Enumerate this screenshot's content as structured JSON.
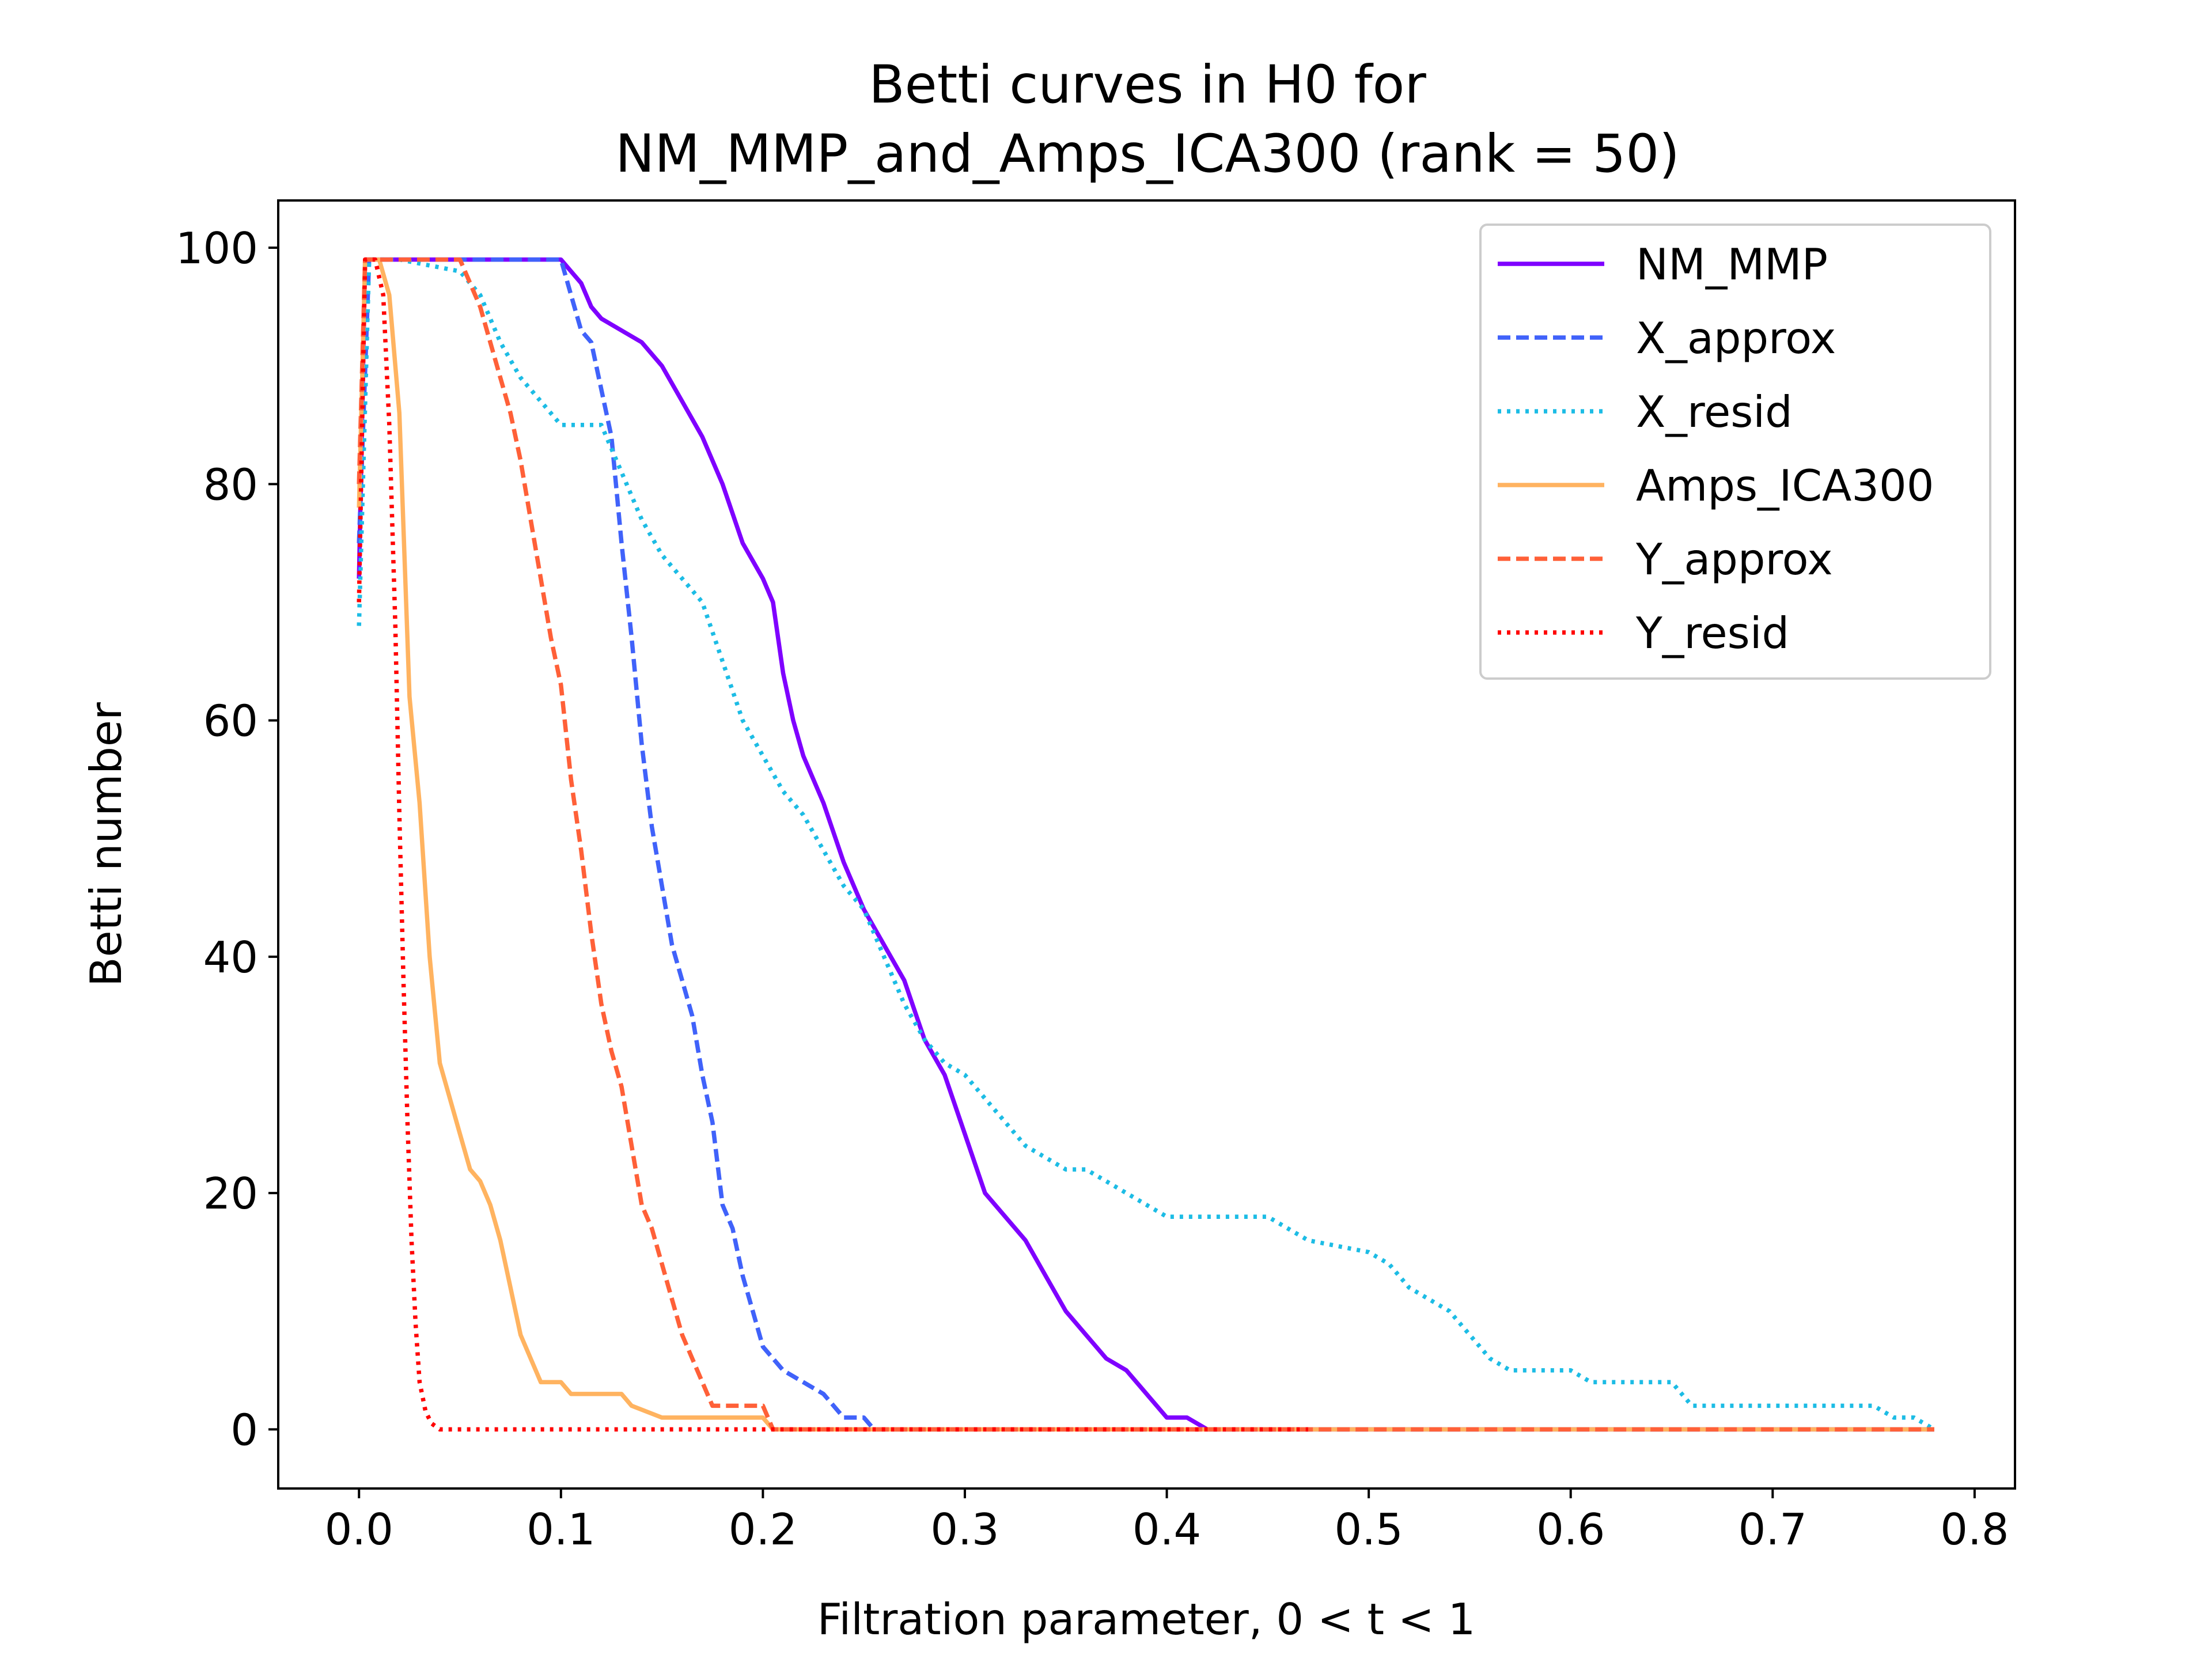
{
  "chart_data": {
    "type": "line",
    "title_line1": "Betti curves in H0 for",
    "title_line2": "NM_MMP_and_Amps_ICA300 (rank = 50)",
    "xlabel": "Filtration parameter, 0 < t < 1",
    "ylabel": "Betti number",
    "xlim": [
      -0.04,
      0.82
    ],
    "ylim": [
      -5,
      104
    ],
    "xticks": [
      0.0,
      0.1,
      0.2,
      0.3,
      0.4,
      0.5,
      0.6,
      0.7,
      0.8
    ],
    "xtick_labels": [
      "0.0",
      "0.1",
      "0.2",
      "0.3",
      "0.4",
      "0.5",
      "0.6",
      "0.7",
      "0.8"
    ],
    "yticks": [
      0,
      20,
      40,
      60,
      80,
      100
    ],
    "ytick_labels": [
      "0",
      "20",
      "40",
      "60",
      "80",
      "100"
    ],
    "grid": false,
    "legend_position": "top-right",
    "series": [
      {
        "name": "NM_MMP",
        "color": "#7f00ff",
        "style": "solid",
        "points": [
          [
            0,
            72
          ],
          [
            0.003,
            99
          ],
          [
            0.02,
            99
          ],
          [
            0.1,
            99
          ],
          [
            0.105,
            98
          ],
          [
            0.11,
            97
          ],
          [
            0.115,
            95
          ],
          [
            0.12,
            94
          ],
          [
            0.13,
            93
          ],
          [
            0.14,
            92
          ],
          [
            0.15,
            90
          ],
          [
            0.16,
            87
          ],
          [
            0.17,
            84
          ],
          [
            0.18,
            80
          ],
          [
            0.19,
            75
          ],
          [
            0.2,
            72
          ],
          [
            0.205,
            70
          ],
          [
            0.21,
            64
          ],
          [
            0.215,
            60
          ],
          [
            0.22,
            57
          ],
          [
            0.23,
            53
          ],
          [
            0.24,
            48
          ],
          [
            0.25,
            44
          ],
          [
            0.26,
            41
          ],
          [
            0.27,
            38
          ],
          [
            0.28,
            33
          ],
          [
            0.29,
            30
          ],
          [
            0.3,
            25
          ],
          [
            0.31,
            20
          ],
          [
            0.32,
            18
          ],
          [
            0.33,
            16
          ],
          [
            0.34,
            13
          ],
          [
            0.35,
            10
          ],
          [
            0.36,
            8
          ],
          [
            0.37,
            6
          ],
          [
            0.38,
            5
          ],
          [
            0.39,
            3
          ],
          [
            0.4,
            1
          ],
          [
            0.41,
            1
          ],
          [
            0.42,
            0
          ],
          [
            0.78,
            0
          ]
        ]
      },
      {
        "name": "X_approx",
        "color": "#4062fa",
        "style": "dashed",
        "points": [
          [
            0,
            75
          ],
          [
            0.005,
            99
          ],
          [
            0.02,
            99
          ],
          [
            0.1,
            99
          ],
          [
            0.105,
            96
          ],
          [
            0.11,
            93
          ],
          [
            0.115,
            92
          ],
          [
            0.12,
            88
          ],
          [
            0.125,
            84
          ],
          [
            0.13,
            75
          ],
          [
            0.135,
            67
          ],
          [
            0.14,
            58
          ],
          [
            0.145,
            51
          ],
          [
            0.15,
            46
          ],
          [
            0.155,
            41
          ],
          [
            0.16,
            38
          ],
          [
            0.165,
            35
          ],
          [
            0.17,
            30
          ],
          [
            0.175,
            26
          ],
          [
            0.18,
            19
          ],
          [
            0.185,
            17
          ],
          [
            0.19,
            13
          ],
          [
            0.195,
            10
          ],
          [
            0.2,
            7
          ],
          [
            0.21,
            5
          ],
          [
            0.22,
            4
          ],
          [
            0.23,
            3
          ],
          [
            0.24,
            1
          ],
          [
            0.25,
            1
          ],
          [
            0.255,
            0
          ],
          [
            0.78,
            0
          ]
        ]
      },
      {
        "name": "X_resid",
        "color": "#1cbce5",
        "style": "dotted",
        "points": [
          [
            0,
            68
          ],
          [
            0.005,
            99
          ],
          [
            0.02,
            99
          ],
          [
            0.05,
            98
          ],
          [
            0.06,
            96
          ],
          [
            0.07,
            92
          ],
          [
            0.08,
            89
          ],
          [
            0.09,
            87
          ],
          [
            0.1,
            85
          ],
          [
            0.12,
            85
          ],
          [
            0.13,
            81
          ],
          [
            0.14,
            77
          ],
          [
            0.15,
            74
          ],
          [
            0.16,
            72
          ],
          [
            0.17,
            70
          ],
          [
            0.18,
            65
          ],
          [
            0.19,
            60
          ],
          [
            0.2,
            57
          ],
          [
            0.21,
            54
          ],
          [
            0.22,
            52
          ],
          [
            0.23,
            49
          ],
          [
            0.24,
            46
          ],
          [
            0.25,
            44
          ],
          [
            0.26,
            40
          ],
          [
            0.27,
            36
          ],
          [
            0.28,
            33
          ],
          [
            0.29,
            31
          ],
          [
            0.3,
            30
          ],
          [
            0.31,
            28
          ],
          [
            0.32,
            26
          ],
          [
            0.33,
            24
          ],
          [
            0.34,
            23
          ],
          [
            0.35,
            22
          ],
          [
            0.36,
            22
          ],
          [
            0.37,
            21
          ],
          [
            0.38,
            20
          ],
          [
            0.39,
            19
          ],
          [
            0.4,
            18
          ],
          [
            0.45,
            18
          ],
          [
            0.46,
            17
          ],
          [
            0.47,
            16
          ],
          [
            0.5,
            15
          ],
          [
            0.51,
            14
          ],
          [
            0.52,
            12
          ],
          [
            0.53,
            11
          ],
          [
            0.54,
            10
          ],
          [
            0.55,
            8
          ],
          [
            0.56,
            6
          ],
          [
            0.57,
            5
          ],
          [
            0.6,
            5
          ],
          [
            0.61,
            4
          ],
          [
            0.65,
            4
          ],
          [
            0.66,
            2
          ],
          [
            0.75,
            2
          ],
          [
            0.76,
            1
          ],
          [
            0.77,
            1
          ],
          [
            0.78,
            0
          ]
        ]
      },
      {
        "name": "Amps_ICA300",
        "color": "#ffb360",
        "style": "solid",
        "points": [
          [
            0,
            78
          ],
          [
            0.003,
            99
          ],
          [
            0.01,
            99
          ],
          [
            0.015,
            96
          ],
          [
            0.02,
            86
          ],
          [
            0.025,
            62
          ],
          [
            0.03,
            53
          ],
          [
            0.035,
            40
          ],
          [
            0.04,
            31
          ],
          [
            0.045,
            28
          ],
          [
            0.05,
            25
          ],
          [
            0.055,
            22
          ],
          [
            0.06,
            21
          ],
          [
            0.065,
            19
          ],
          [
            0.07,
            16
          ],
          [
            0.075,
            12
          ],
          [
            0.08,
            8
          ],
          [
            0.085,
            6
          ],
          [
            0.09,
            4
          ],
          [
            0.1,
            4
          ],
          [
            0.105,
            3
          ],
          [
            0.13,
            3
          ],
          [
            0.135,
            2
          ],
          [
            0.15,
            1
          ],
          [
            0.2,
            1
          ],
          [
            0.205,
            0
          ],
          [
            0.78,
            0
          ]
        ]
      },
      {
        "name": "Y_approx",
        "color": "#ff6038",
        "style": "dashed",
        "points": [
          [
            0,
            80
          ],
          [
            0.003,
            99
          ],
          [
            0.05,
            99
          ],
          [
            0.055,
            97
          ],
          [
            0.06,
            95
          ],
          [
            0.065,
            92
          ],
          [
            0.07,
            89
          ],
          [
            0.075,
            86
          ],
          [
            0.08,
            82
          ],
          [
            0.085,
            77
          ],
          [
            0.09,
            72
          ],
          [
            0.095,
            67
          ],
          [
            0.1,
            63
          ],
          [
            0.105,
            55
          ],
          [
            0.11,
            49
          ],
          [
            0.115,
            42
          ],
          [
            0.12,
            36
          ],
          [
            0.125,
            32
          ],
          [
            0.13,
            29
          ],
          [
            0.135,
            24
          ],
          [
            0.14,
            19
          ],
          [
            0.145,
            17
          ],
          [
            0.15,
            14
          ],
          [
            0.155,
            11
          ],
          [
            0.16,
            8
          ],
          [
            0.165,
            6
          ],
          [
            0.17,
            4
          ],
          [
            0.175,
            2
          ],
          [
            0.2,
            2
          ],
          [
            0.205,
            0
          ],
          [
            0.78,
            0
          ]
        ]
      },
      {
        "name": "Y_resid",
        "color": "#ff0000",
        "style": "dotted",
        "points": [
          [
            0,
            70
          ],
          [
            0.003,
            99
          ],
          [
            0.008,
            99
          ],
          [
            0.012,
            96
          ],
          [
            0.015,
            85
          ],
          [
            0.018,
            68
          ],
          [
            0.02,
            52
          ],
          [
            0.022,
            38
          ],
          [
            0.024,
            26
          ],
          [
            0.026,
            16
          ],
          [
            0.028,
            9
          ],
          [
            0.03,
            4
          ],
          [
            0.033,
            1.5
          ],
          [
            0.036,
            0.5
          ],
          [
            0.04,
            0
          ],
          [
            0.47,
            0
          ]
        ]
      }
    ]
  }
}
